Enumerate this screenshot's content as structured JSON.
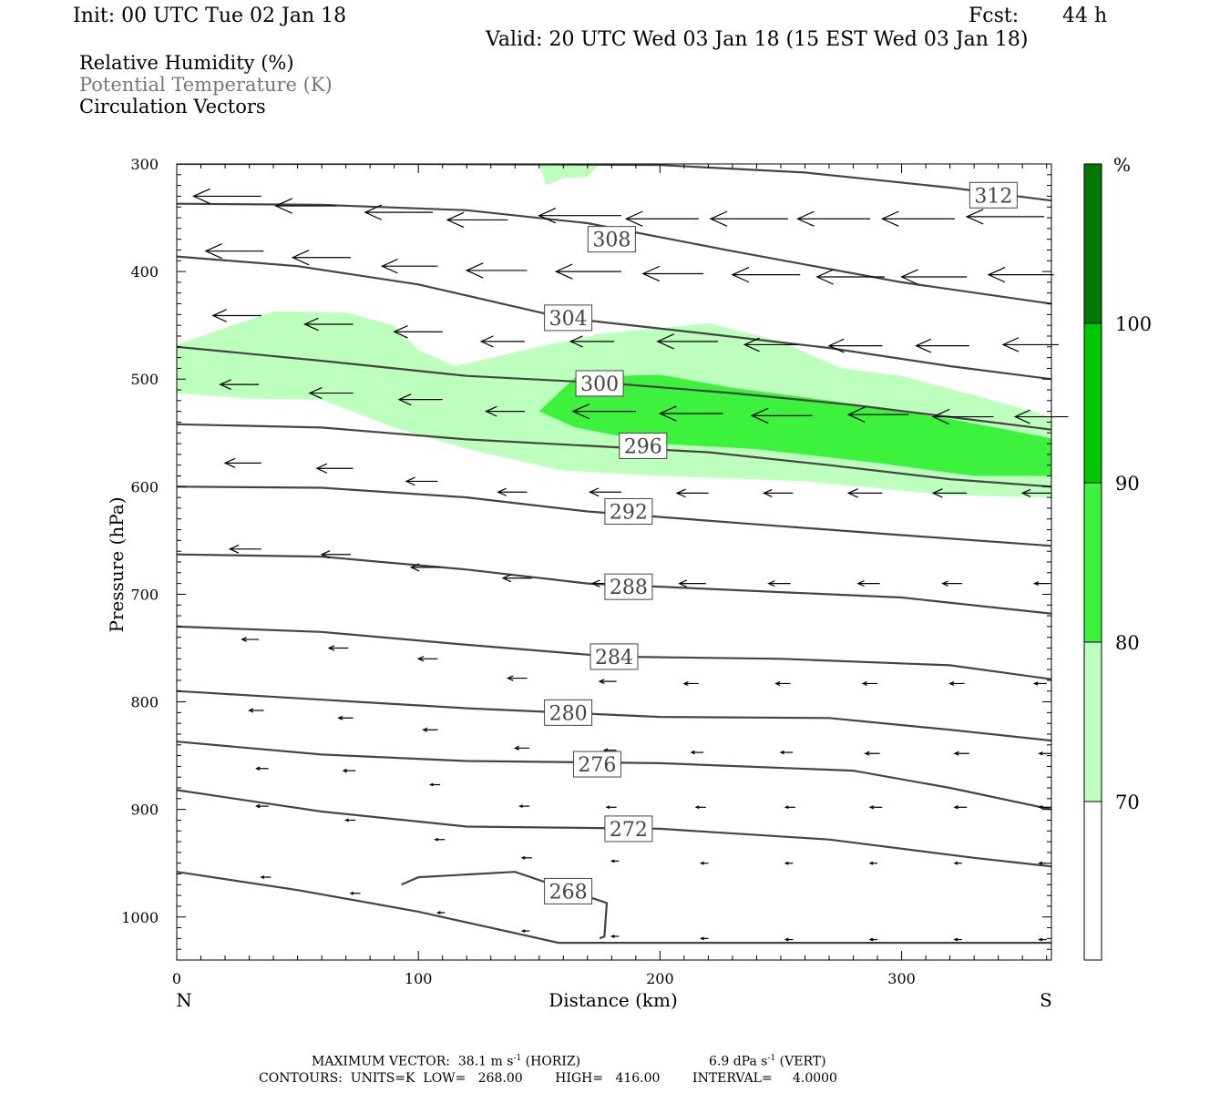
{
  "header": {
    "init": "Init: 00 UTC Tue 02 Jan 18",
    "fcst_label": "Fcst:",
    "fcst_value": "44 h",
    "valid": "Valid: 20 UTC Wed 03 Jan 18 (15 EST Wed 03 Jan 18)"
  },
  "legend": {
    "items": [
      {
        "label": "Relative Humidity (%)",
        "color": "#000000"
      },
      {
        "label": "Potential Temperature (K)",
        "color": "#777777"
      },
      {
        "label": "Circulation Vectors",
        "color": "#000000"
      }
    ]
  },
  "colorbar": {
    "unit": "%",
    "levels": [
      "70",
      "80",
      "90",
      "100"
    ],
    "colors": [
      "#ffffff",
      "#bdffbd",
      "#3df23d",
      "#00c800",
      "#007a00"
    ]
  },
  "chart_data": {
    "type": "cross-section",
    "xlabel": "Distance (km)",
    "ylabel": "Pressure (hPa)",
    "xlim": [
      0,
      362
    ],
    "ylim": [
      1040,
      300
    ],
    "x_ticks": [
      "0",
      "100",
      "200",
      "300"
    ],
    "y_ticks": [
      "300",
      "400",
      "500",
      "600",
      "700",
      "800",
      "900",
      "1000"
    ],
    "x_endpoints": {
      "left": "N",
      "right": "S"
    },
    "isentropes": [
      {
        "label": "312",
        "label_x": 338,
        "label_p": 329,
        "points": [
          [
            0,
            300
          ],
          [
            100,
            300
          ],
          [
            200,
            301
          ],
          [
            260,
            308
          ],
          [
            320,
            322
          ],
          [
            362,
            334
          ]
        ]
      },
      {
        "label": "308",
        "label_x": 180,
        "label_p": 370,
        "points": [
          [
            0,
            337
          ],
          [
            60,
            338
          ],
          [
            120,
            343
          ],
          [
            170,
            355
          ],
          [
            230,
            381
          ],
          [
            300,
            410
          ],
          [
            362,
            430
          ]
        ]
      },
      {
        "label": "304",
        "label_x": 162,
        "label_p": 443,
        "points": [
          [
            0,
            386
          ],
          [
            50,
            395
          ],
          [
            100,
            412
          ],
          [
            160,
            443
          ],
          [
            220,
            458
          ],
          [
            270,
            471
          ],
          [
            320,
            488
          ],
          [
            362,
            500
          ]
        ]
      },
      {
        "label": "300",
        "label_x": 175,
        "label_p": 504,
        "points": [
          [
            0,
            470
          ],
          [
            60,
            483
          ],
          [
            120,
            497
          ],
          [
            180,
            504
          ],
          [
            230,
            513
          ],
          [
            280,
            524
          ],
          [
            330,
            538
          ],
          [
            362,
            547
          ]
        ]
      },
      {
        "label": "296",
        "label_x": 193,
        "label_p": 562,
        "points": [
          [
            0,
            542
          ],
          [
            60,
            545
          ],
          [
            120,
            556
          ],
          [
            170,
            562
          ],
          [
            220,
            568
          ],
          [
            270,
            580
          ],
          [
            320,
            593
          ],
          [
            362,
            600
          ]
        ]
      },
      {
        "label": "292",
        "label_x": 187,
        "label_p": 623,
        "points": [
          [
            0,
            600
          ],
          [
            60,
            601
          ],
          [
            120,
            610
          ],
          [
            170,
            623
          ],
          [
            240,
            635
          ],
          [
            300,
            645
          ],
          [
            362,
            655
          ]
        ]
      },
      {
        "label": "288",
        "label_x": 187,
        "label_p": 693,
        "points": [
          [
            0,
            663
          ],
          [
            60,
            665
          ],
          [
            120,
            677
          ],
          [
            170,
            690
          ],
          [
            250,
            698
          ],
          [
            300,
            703
          ],
          [
            362,
            718
          ]
        ]
      },
      {
        "label": "284",
        "label_x": 181,
        "label_p": 758,
        "points": [
          [
            0,
            730
          ],
          [
            60,
            735
          ],
          [
            120,
            747
          ],
          [
            180,
            758
          ],
          [
            250,
            760
          ],
          [
            320,
            766
          ],
          [
            362,
            779
          ]
        ]
      },
      {
        "label": "280",
        "label_x": 162,
        "label_p": 810,
        "points": [
          [
            0,
            790
          ],
          [
            60,
            798
          ],
          [
            120,
            806
          ],
          [
            200,
            814
          ],
          [
            270,
            815
          ],
          [
            320,
            826
          ],
          [
            362,
            836
          ]
        ]
      },
      {
        "label": "276",
        "label_x": 174,
        "label_p": 858,
        "points": [
          [
            0,
            837
          ],
          [
            60,
            849
          ],
          [
            120,
            855
          ],
          [
            200,
            857
          ],
          [
            280,
            864
          ],
          [
            320,
            880
          ],
          [
            362,
            900
          ]
        ]
      },
      {
        "label": "272",
        "label_x": 187,
        "label_p": 918,
        "points": [
          [
            0,
            882
          ],
          [
            60,
            902
          ],
          [
            120,
            916
          ],
          [
            200,
            918
          ],
          [
            270,
            928
          ],
          [
            330,
            945
          ],
          [
            362,
            953
          ]
        ]
      },
      {
        "label": "268",
        "label_x": 162,
        "label_p": 976,
        "points": [
          [
            0,
            958
          ],
          [
            50,
            975
          ],
          [
            100,
            995
          ],
          [
            130,
            1010
          ],
          [
            158,
            1024
          ],
          [
            220,
            1024
          ],
          [
            362,
            1024
          ]
        ]
      }
    ],
    "isentrope_268_closed": [
      [
        93,
        970
      ],
      [
        100,
        963
      ],
      [
        140,
        958
      ],
      [
        178,
        987
      ],
      [
        177,
        1018
      ],
      [
        175,
        1020
      ]
    ],
    "rh_70_regions": [
      [
        [
          0,
          468
        ],
        [
          40,
          437
        ],
        [
          70,
          438
        ],
        [
          90,
          450
        ],
        [
          100,
          473
        ],
        [
          115,
          488
        ],
        [
          150,
          470
        ],
        [
          175,
          458
        ],
        [
          220,
          448
        ],
        [
          250,
          465
        ],
        [
          275,
          490
        ],
        [
          300,
          497
        ],
        [
          330,
          515
        ],
        [
          362,
          535
        ],
        [
          362,
          610
        ],
        [
          320,
          608
        ],
        [
          260,
          595
        ],
        [
          200,
          590
        ],
        [
          160,
          585
        ],
        [
          120,
          565
        ],
        [
          90,
          545
        ],
        [
          60,
          519
        ],
        [
          30,
          518
        ],
        [
          0,
          513
        ]
      ],
      [
        [
          150,
          300
        ],
        [
          175,
          300
        ],
        [
          170,
          312
        ],
        [
          160,
          313
        ],
        [
          153,
          320
        ]
      ]
    ],
    "rh_80_regions": [
      [
        [
          150,
          530
        ],
        [
          165,
          498
        ],
        [
          200,
          496
        ],
        [
          230,
          508
        ],
        [
          270,
          520
        ],
        [
          320,
          537
        ],
        [
          362,
          555
        ],
        [
          362,
          590
        ],
        [
          330,
          590
        ],
        [
          290,
          578
        ],
        [
          240,
          565
        ],
        [
          200,
          560
        ],
        [
          165,
          545
        ]
      ]
    ],
    "vectors": [
      {
        "x": 7,
        "p": 330,
        "len": 28
      },
      {
        "x": 41,
        "p": 339,
        "len": 25
      },
      {
        "x": 78,
        "p": 345,
        "len": 28
      },
      {
        "x": 112,
        "p": 352,
        "len": 25
      },
      {
        "x": 150,
        "p": 348,
        "len": 34
      },
      {
        "x": 186,
        "p": 351,
        "len": 30
      },
      {
        "x": 221,
        "p": 351,
        "len": 32
      },
      {
        "x": 257,
        "p": 351,
        "len": 30
      },
      {
        "x": 292,
        "p": 351,
        "len": 30
      },
      {
        "x": 327,
        "p": 349,
        "len": 32
      },
      {
        "x": 12,
        "p": 381,
        "len": 24
      },
      {
        "x": 48,
        "p": 387,
        "len": 24
      },
      {
        "x": 85,
        "p": 395,
        "len": 23
      },
      {
        "x": 120,
        "p": 399,
        "len": 25
      },
      {
        "x": 157,
        "p": 400,
        "len": 27
      },
      {
        "x": 193,
        "p": 402,
        "len": 25
      },
      {
        "x": 230,
        "p": 403,
        "len": 28
      },
      {
        "x": 265,
        "p": 405,
        "len": 28
      },
      {
        "x": 300,
        "p": 405,
        "len": 27
      },
      {
        "x": 336,
        "p": 403,
        "len": 27
      },
      {
        "x": 15,
        "p": 441,
        "len": 20
      },
      {
        "x": 53,
        "p": 449,
        "len": 20
      },
      {
        "x": 90,
        "p": 456,
        "len": 20
      },
      {
        "x": 126,
        "p": 465,
        "len": 18
      },
      {
        "x": 163,
        "p": 465,
        "len": 18
      },
      {
        "x": 199,
        "p": 465,
        "len": 25
      },
      {
        "x": 235,
        "p": 468,
        "len": 22
      },
      {
        "x": 270,
        "p": 469,
        "len": 22
      },
      {
        "x": 306,
        "p": 469,
        "len": 22
      },
      {
        "x": 342,
        "p": 468,
        "len": 23
      },
      {
        "x": 18,
        "p": 505,
        "len": 16
      },
      {
        "x": 55,
        "p": 513,
        "len": 18
      },
      {
        "x": 92,
        "p": 519,
        "len": 18
      },
      {
        "x": 128,
        "p": 530,
        "len": 16
      },
      {
        "x": 164,
        "p": 530,
        "len": 26
      },
      {
        "x": 200,
        "p": 532,
        "len": 26
      },
      {
        "x": 238,
        "p": 534,
        "len": 25
      },
      {
        "x": 278,
        "p": 533,
        "len": 25
      },
      {
        "x": 313,
        "p": 535,
        "len": 25
      },
      {
        "x": 347,
        "p": 535,
        "len": 22
      },
      {
        "x": 20,
        "p": 578,
        "len": 15
      },
      {
        "x": 58,
        "p": 583,
        "len": 15
      },
      {
        "x": 95,
        "p": 595,
        "len": 13
      },
      {
        "x": 133,
        "p": 605,
        "len": 12
      },
      {
        "x": 171,
        "p": 605,
        "len": 13
      },
      {
        "x": 207,
        "p": 606,
        "len": 13
      },
      {
        "x": 243,
        "p": 606,
        "len": 12
      },
      {
        "x": 278,
        "p": 606,
        "len": 14
      },
      {
        "x": 313,
        "p": 606,
        "len": 14
      },
      {
        "x": 350,
        "p": 606,
        "len": 12
      },
      {
        "x": 22,
        "p": 658,
        "len": 13
      },
      {
        "x": 60,
        "p": 663,
        "len": 12
      },
      {
        "x": 97,
        "p": 675,
        "len": 12
      },
      {
        "x": 135,
        "p": 685,
        "len": 12
      },
      {
        "x": 172,
        "p": 690,
        "len": 11
      },
      {
        "x": 208,
        "p": 690,
        "len": 11
      },
      {
        "x": 245,
        "p": 690,
        "len": 9
      },
      {
        "x": 282,
        "p": 690,
        "len": 9
      },
      {
        "x": 317,
        "p": 690,
        "len": 8
      },
      {
        "x": 355,
        "p": 690,
        "len": 6
      },
      {
        "x": 27,
        "p": 742,
        "len": 7
      },
      {
        "x": 63,
        "p": 750,
        "len": 8
      },
      {
        "x": 100,
        "p": 760,
        "len": 8
      },
      {
        "x": 137,
        "p": 778,
        "len": 8
      },
      {
        "x": 175,
        "p": 781,
        "len": 7
      },
      {
        "x": 210,
        "p": 783,
        "len": 6
      },
      {
        "x": 248,
        "p": 783,
        "len": 6
      },
      {
        "x": 284,
        "p": 783,
        "len": 6
      },
      {
        "x": 320,
        "p": 783,
        "len": 6
      },
      {
        "x": 355,
        "p": 783,
        "len": 5
      },
      {
        "x": 30,
        "p": 808,
        "len": 6
      },
      {
        "x": 67,
        "p": 815,
        "len": 6
      },
      {
        "x": 102,
        "p": 826,
        "len": 6
      },
      {
        "x": 140,
        "p": 843,
        "len": 6
      },
      {
        "x": 177,
        "p": 845,
        "len": 5
      },
      {
        "x": 213,
        "p": 847,
        "len": 5
      },
      {
        "x": 250,
        "p": 847,
        "len": 5
      },
      {
        "x": 285,
        "p": 848,
        "len": 6
      },
      {
        "x": 322,
        "p": 848,
        "len": 6
      },
      {
        "x": 357,
        "p": 848,
        "len": 5
      },
      {
        "x": 33,
        "p": 862,
        "len": 5
      },
      {
        "x": 69,
        "p": 864,
        "len": 5
      },
      {
        "x": 105,
        "p": 877,
        "len": 4
      },
      {
        "x": 142,
        "p": 897,
        "len": 4
      },
      {
        "x": 178,
        "p": 898,
        "len": 4
      },
      {
        "x": 215,
        "p": 898,
        "len": 4
      },
      {
        "x": 252,
        "p": 898,
        "len": 4
      },
      {
        "x": 287,
        "p": 898,
        "len": 5
      },
      {
        "x": 322,
        "p": 898,
        "len": 5
      },
      {
        "x": 357,
        "p": 898,
        "len": 5
      },
      {
        "x": 33,
        "p": 897,
        "len": 5
      },
      {
        "x": 70,
        "p": 910,
        "len": 4
      },
      {
        "x": 107,
        "p": 928,
        "len": 4
      },
      {
        "x": 143,
        "p": 945,
        "len": 4
      },
      {
        "x": 180,
        "p": 948,
        "len": 3
      },
      {
        "x": 217,
        "p": 950,
        "len": 3
      },
      {
        "x": 252,
        "p": 950,
        "len": 3
      },
      {
        "x": 287,
        "p": 950,
        "len": 3
      },
      {
        "x": 322,
        "p": 950,
        "len": 3
      },
      {
        "x": 357,
        "p": 950,
        "len": 3
      },
      {
        "x": 35,
        "p": 963,
        "len": 4
      },
      {
        "x": 72,
        "p": 978,
        "len": 4
      },
      {
        "x": 108,
        "p": 996,
        "len": 3
      },
      {
        "x": 143,
        "p": 1013,
        "len": 3
      },
      {
        "x": 180,
        "p": 1018,
        "len": 3
      },
      {
        "x": 217,
        "p": 1020,
        "len": 3
      },
      {
        "x": 252,
        "p": 1021,
        "len": 3
      },
      {
        "x": 287,
        "p": 1021,
        "len": 3
      },
      {
        "x": 322,
        "p": 1021,
        "len": 3
      },
      {
        "x": 357,
        "p": 1021,
        "len": 3
      }
    ]
  },
  "footer": {
    "line1_a": "MAXIMUM VECTOR:  38.1 m s",
    "line1_a_sup": "-1",
    "line1_b": " (HORIZ)",
    "line1_c": "6.9 dPa s",
    "line1_c_sup": "-1",
    "line1_d": " (VERT)",
    "line2": "CONTOURS:  UNITS=K  LOW=   268.00        HIGH=   416.00        INTERVAL=     4.0000"
  }
}
